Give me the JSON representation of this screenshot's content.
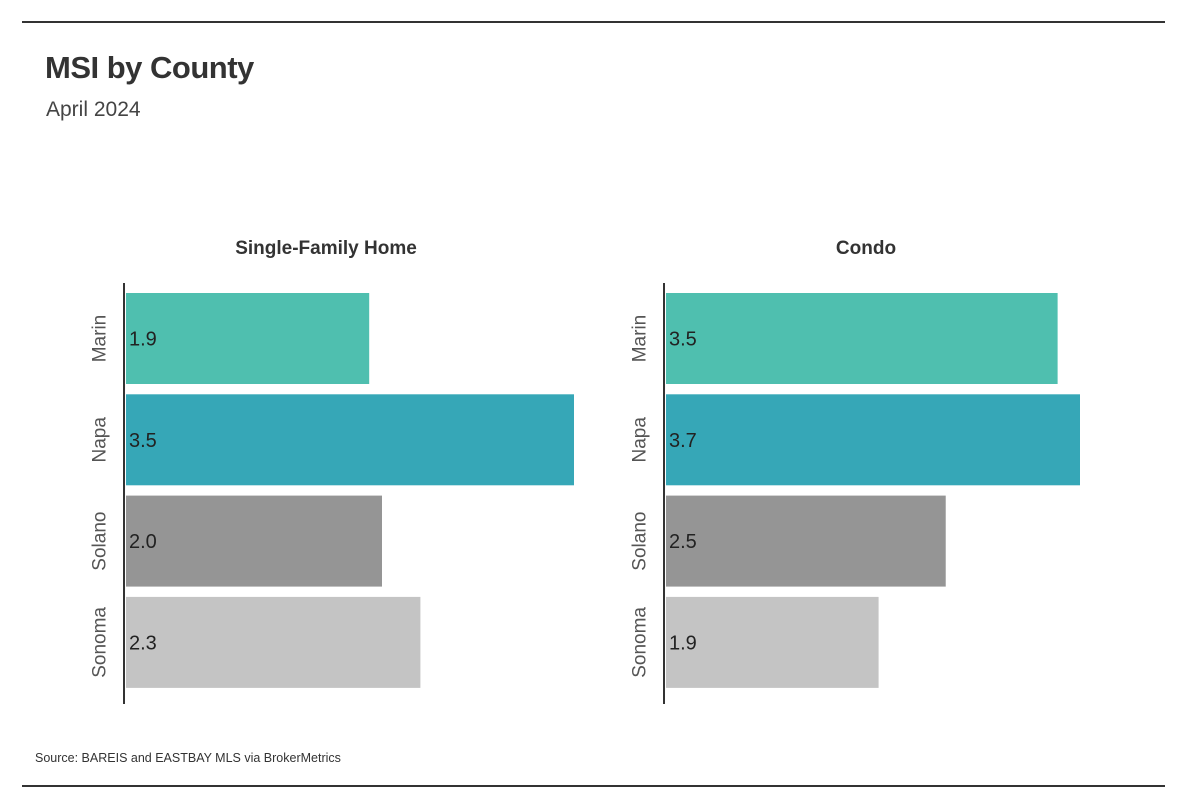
{
  "title": "MSI by County",
  "subtitle": "April 2024",
  "source": "Source:  BAREIS and EASTBAY MLS via BrokerMetrics",
  "chart_data": [
    {
      "type": "bar",
      "orientation": "horizontal",
      "title": "Single-Family Home",
      "categories": [
        "Marin",
        "Napa",
        "Solano",
        "Sonoma"
      ],
      "values": [
        1.9,
        3.5,
        2.0,
        2.3
      ],
      "value_labels": [
        "1.9",
        "3.5",
        "2.0",
        "2.3"
      ],
      "colors": [
        "#4fbfaf",
        "#36a7b7",
        "#959595",
        "#c4c4c4"
      ],
      "xlim": [
        0,
        3.5
      ]
    },
    {
      "type": "bar",
      "orientation": "horizontal",
      "title": "Condo",
      "categories": [
        "Marin",
        "Napa",
        "Solano",
        "Sonoma"
      ],
      "values": [
        3.5,
        3.7,
        2.5,
        1.9
      ],
      "value_labels": [
        "3.5",
        "3.7",
        "2.5",
        "1.9"
      ],
      "colors": [
        "#4fbfaf",
        "#36a7b7",
        "#959595",
        "#c4c4c4"
      ],
      "xlim": [
        0,
        3.7
      ]
    }
  ]
}
